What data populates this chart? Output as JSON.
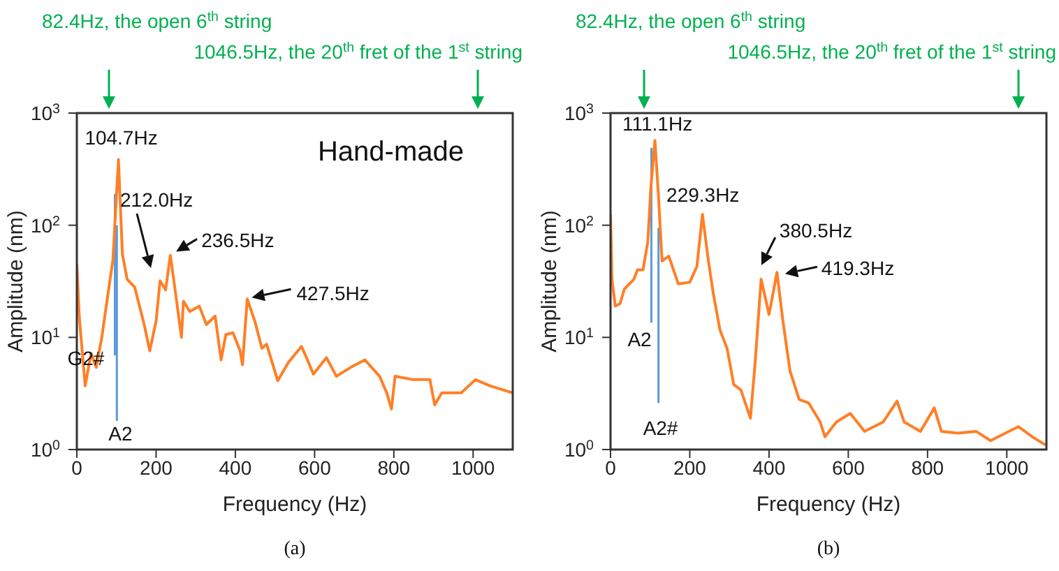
{
  "chart_data": [
    {
      "type": "line",
      "title": "(a)",
      "xlabel": "Frequency (Hz)",
      "ylabel": "Amplitude (nm)",
      "log": "y",
      "xlim": [
        0,
        1100
      ],
      "xticks": [
        0,
        200,
        400,
        600,
        800,
        1000
      ],
      "ylim": [
        1,
        1000
      ],
      "yticks": [
        {
          "value": 1,
          "label": "10$^{0}$"
        },
        {
          "value": 10,
          "label": "10$^{1}$"
        },
        {
          "value": 100,
          "label": "10$^{2}$"
        },
        {
          "value": 1000,
          "label": "10$^{3}$"
        }
      ],
      "grid": false,
      "series": [
        {
          "color": "#5b9bd5",
          "x": [
            96,
            96
          ],
          "values": [
            190,
            6.9
          ]
        },
        {
          "color": "#5b9bd5",
          "x": [
            101,
            101
          ],
          "values": [
            100,
            1.8
          ]
        },
        {
          "color": "#ff7f27",
          "x": [
            0,
            6,
            21,
            36,
            49,
            63,
            79,
            91,
            105,
            115,
            127,
            146,
            170,
            184,
            200,
            210,
            224,
            236,
            249,
            264,
            269,
            285,
            309,
            327,
            349,
            364,
            376,
            394,
            412,
            418,
            430,
            449,
            467,
            479,
            507,
            534,
            567,
            582,
            597,
            630,
            655,
            691,
            727,
            764,
            782,
            794,
            803,
            849,
            891,
            903,
            921,
            970,
            1006,
            1042,
            1100
          ],
          "values": [
            45,
            15.5,
            3.7,
            7.2,
            5.4,
            10,
            25,
            49,
            385,
            55,
            33,
            28,
            13,
            7.6,
            14,
            32,
            26.5,
            54,
            25,
            10,
            21,
            17,
            19,
            13,
            15.5,
            6.3,
            10.6,
            11,
            7.6,
            5.7,
            22,
            14,
            8,
            8.7,
            4.1,
            6,
            8.3,
            6.3,
            4.7,
            6.6,
            4.5,
            5.4,
            6.3,
            4.5,
            3.2,
            2.3,
            4.5,
            4.2,
            4.2,
            2.5,
            3.2,
            3.2,
            4.2,
            3.7,
            3.2
          ]
        }
      ],
      "annotations": [
        "82.4Hz, the open 6$^{th}$ string",
        "1046.5Hz, the 20$^{th}$ fret of the 1$^{st}$ string",
        "Hand-made",
        "212.0Hz",
        {
          "text": "104.7Hz",
          "x": 104.7,
          "y": 385
        },
        {
          "text": "236.5Hz",
          "x": 236.5,
          "y": 55
        },
        {
          "text": "427.5Hz",
          "x": 427.5,
          "y": 22
        },
        {
          "text": "G2#",
          "x": 96,
          "y": 6.9
        },
        {
          "text": "A2",
          "x": 101,
          "y": 1.8
        }
      ]
    },
    {
      "type": "line",
      "title": "(b)",
      "xlabel": "Frequency (Hz)",
      "ylabel": "Amplitude (nm)",
      "log": "y",
      "xlim": [
        0,
        1100
      ],
      "xticks": [
        0,
        200,
        400,
        600,
        800,
        1000
      ],
      "ylim": [
        1,
        1000
      ],
      "yticks": [
        {
          "value": 1,
          "label": "10$^{0}$"
        },
        {
          "value": 10,
          "label": "10$^{1}$"
        },
        {
          "value": 100,
          "label": "10$^{2}$"
        },
        {
          "value": 1000,
          "label": "10$^{3}$"
        }
      ],
      "grid": false,
      "series": [
        {
          "color": "#5b9bd5",
          "x": [
            103,
            103
          ],
          "values": [
            490,
            13.5
          ]
        },
        {
          "color": "#5b9bd5",
          "x": [
            121,
            121
          ],
          "values": [
            95,
            2.6
          ]
        },
        {
          "color": "#ff7f27",
          "x": [
            0,
            3.5,
            12,
            24,
            35,
            59,
            68,
            82,
            94,
            102,
            112,
            121,
            130,
            147,
            171,
            200,
            218,
            232,
            247,
            259,
            276,
            294,
            311,
            329,
            353,
            365,
            380,
            400,
            420,
            435,
            453,
            476,
            500,
            529,
            541,
            570,
            605,
            641,
            688,
            723,
            741,
            782,
            817,
            835,
            876,
            923,
            959,
            1029,
            1064,
            1098
          ],
          "values": [
            125,
            33,
            19,
            20,
            27,
            33,
            40,
            40,
            71,
            223,
            570,
            182,
            48,
            53,
            30,
            31,
            43,
            125,
            48,
            25,
            11.7,
            8,
            3.8,
            3.4,
            1.9,
            6,
            33,
            16,
            38,
            14,
            5,
            2.8,
            2.6,
            1.76,
            1.3,
            1.76,
            2.1,
            1.45,
            1.76,
            2.7,
            1.76,
            1.45,
            2.35,
            1.45,
            1.4,
            1.45,
            1.2,
            1.6,
            1.3,
            1.1
          ]
        }
      ],
      "annotations": [
        "82.4Hz, the open 6$^{th}$ string",
        "1046.5Hz, the 20$^{th}$ fret of the 1$^{st}$ string",
        {
          "text": "111.1Hz",
          "x": 111.1,
          "y": 570
        },
        {
          "text": "229.3Hz",
          "x": 229.3,
          "y": 125
        },
        {
          "text": "380.5Hz",
          "x": 380.5,
          "y": 33
        },
        {
          "text": "419.3Hz",
          "x": 419.3,
          "y": 38
        },
        {
          "text": "A2",
          "x": 103,
          "y": 13.5
        },
        {
          "text": "A2#",
          "x": 121,
          "y": 2.6
        }
      ]
    }
  ]
}
